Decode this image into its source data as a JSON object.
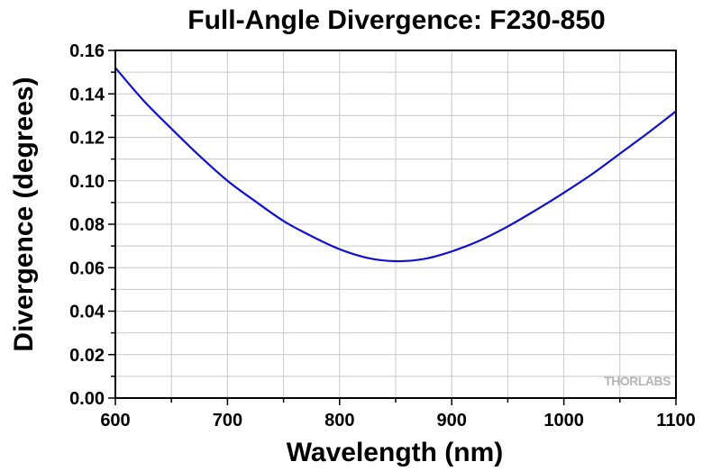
{
  "chart_data": {
    "type": "line",
    "title": "Full-Angle Divergence: F230-850",
    "xlabel": "Wavelength (nm)",
    "ylabel": "Divergence (degrees)",
    "xlim": [
      600,
      1100
    ],
    "ylim": [
      0,
      0.16
    ],
    "x_ticks": [
      "600",
      "700",
      "800",
      "900",
      "1000",
      "1100"
    ],
    "y_ticks": [
      "0.00",
      "0.02",
      "0.04",
      "0.06",
      "0.08",
      "0.10",
      "0.12",
      "0.14",
      "0.16"
    ],
    "grid": true,
    "series": [
      {
        "color": "#1010d0",
        "x": [
          600,
          625,
          650,
          675,
          700,
          725,
          750,
          775,
          800,
          825,
          850,
          875,
          900,
          925,
          950,
          975,
          1000,
          1025,
          1050,
          1075,
          1100
        ],
        "y": [
          0.152,
          0.137,
          0.124,
          0.1115,
          0.1,
          0.0905,
          0.0815,
          0.0745,
          0.0685,
          0.0645,
          0.063,
          0.064,
          0.0675,
          0.0725,
          0.079,
          0.0865,
          0.0945,
          0.103,
          0.1125,
          0.122,
          0.132
        ]
      }
    ]
  },
  "watermark": "THORLABS"
}
